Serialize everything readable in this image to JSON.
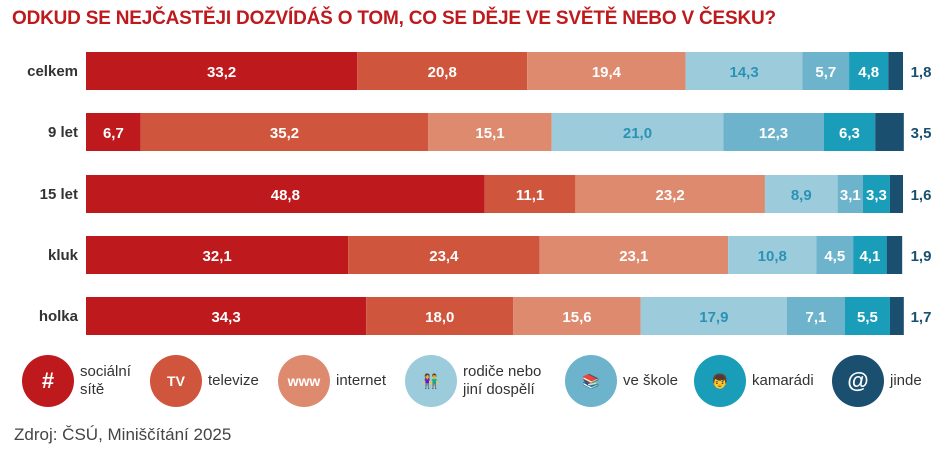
{
  "chart_data": {
    "type": "stacked-bar-horizontal",
    "title": "ODKUD SE NEJČASTĚJI DOZVÍDÁŠ O TOM, CO SE DĚJE VE SVĚTĚ NEBO V ČESKU?",
    "categories": [
      "celkem",
      "9 let",
      "15 let",
      "kluk",
      "holka"
    ],
    "series": [
      {
        "name": "sociální sítě",
        "color": "#be1a1e",
        "label_color": "#ffffff",
        "values": [
          33.2,
          6.7,
          48.8,
          32.1,
          34.3
        ]
      },
      {
        "name": "televize",
        "color": "#d0553d",
        "label_color": "#ffffff",
        "values": [
          20.8,
          35.2,
          11.1,
          23.4,
          18.0
        ]
      },
      {
        "name": "internet",
        "color": "#de8a6e",
        "label_color": "#ffffff",
        "values": [
          19.4,
          15.1,
          23.2,
          23.1,
          15.6
        ]
      },
      {
        "name": "rodiče nebo jiní dospělí",
        "color": "#9ccbdc",
        "label_color": "#2a93b5",
        "values": [
          14.3,
          21.0,
          8.9,
          10.8,
          17.9
        ]
      },
      {
        "name": "ve škole",
        "color": "#6db3cb",
        "label_color": "#ffffff",
        "values": [
          5.7,
          12.3,
          3.1,
          4.5,
          7.1
        ]
      },
      {
        "name": "kamarádi",
        "color": "#1a9db8",
        "label_color": "#ffffff",
        "values": [
          4.8,
          6.3,
          3.3,
          4.1,
          5.5
        ]
      },
      {
        "name": "jinde",
        "color": "#1a4f6f",
        "label_color": "#1a4f6f",
        "values": [
          1.8,
          3.5,
          1.6,
          1.9,
          1.7
        ]
      }
    ],
    "xlim": [
      0,
      100
    ]
  },
  "legend": [
    {
      "label": "sociální\nsítě",
      "icon": "hashtag-icon",
      "glyph": "#",
      "color": "#be1a1e"
    },
    {
      "label": "televize",
      "icon": "tv-icon",
      "glyph": "TV",
      "color": "#d0553d"
    },
    {
      "label": "internet",
      "icon": "globe-www-icon",
      "glyph": "www",
      "color": "#de8a6e"
    },
    {
      "label": "rodiče nebo\njiní dospělí",
      "icon": "parents-icon",
      "glyph": "👫",
      "color": "#9ccbdc"
    },
    {
      "label": "ve škole",
      "icon": "school-girl-icon",
      "glyph": "📚",
      "color": "#6db3cb"
    },
    {
      "label": "kamarádi",
      "icon": "friends-icon",
      "glyph": "👦",
      "color": "#1a9db8"
    },
    {
      "label": "jinde",
      "icon": "at-icon",
      "glyph": "@",
      "color": "#1a4f6f"
    }
  ],
  "source": "Zdroj: ČSÚ, Miniščítání 2025"
}
